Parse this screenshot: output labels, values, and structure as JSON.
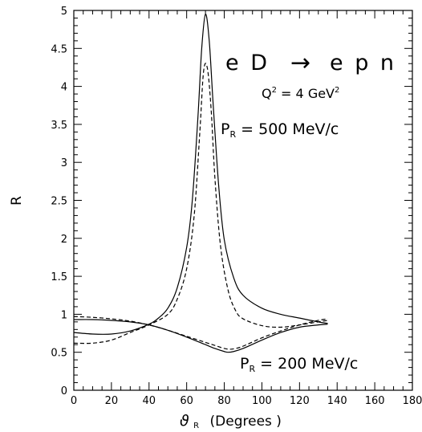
{
  "chart_data": {
    "type": "line",
    "xlabel_symbol": "ϑ",
    "xlabel_sub": "R",
    "xlabel_text": "(Degrees )",
    "ylabel": "R",
    "xlim": [
      0,
      180
    ],
    "ylim": [
      0,
      5
    ],
    "xticks": [
      0,
      20,
      40,
      60,
      80,
      100,
      120,
      140,
      160,
      180
    ],
    "yticks": [
      0,
      0.5,
      1,
      1.5,
      2,
      2.5,
      3,
      3.5,
      4,
      4.5,
      5
    ],
    "ytick_labels": [
      "0",
      "0.5",
      "1",
      "1.5",
      "2",
      "2.5",
      "3",
      "3.5",
      "4",
      "4.5",
      "5"
    ],
    "grid": false,
    "annotations": {
      "reaction": "eD → epn",
      "reaction_left": "e D",
      "reaction_arrow": "→",
      "reaction_right": "e p n",
      "q2_pre": "Q",
      "q2_sup": "2",
      "q2_mid": " = 4 GeV",
      "q2_unit_sup": "2",
      "p_upper_main": "P",
      "p_upper_sub": "R",
      "p_upper_rest": " = 500 MeV/c",
      "p_lower_main": "P",
      "p_lower_sub": "R",
      "p_lower_rest": " = 200 MeV/c"
    },
    "series": [
      {
        "style": "solid",
        "x": [
          0,
          10,
          20,
          30,
          40,
          45,
          50,
          55,
          60,
          63,
          66,
          68,
          70,
          72,
          74,
          77,
          80,
          85,
          90,
          100,
          110,
          120,
          130,
          135
        ],
        "y": [
          0.76,
          0.74,
          0.74,
          0.78,
          0.87,
          0.95,
          1.08,
          1.35,
          1.88,
          2.5,
          3.6,
          4.5,
          4.95,
          4.6,
          3.8,
          2.7,
          1.98,
          1.48,
          1.25,
          1.08,
          1.0,
          0.95,
          0.9,
          0.88
        ]
      },
      {
        "style": "dashed",
        "x": [
          0,
          10,
          20,
          30,
          40,
          50,
          55,
          60,
          64,
          67,
          69,
          71,
          73,
          75,
          78,
          82,
          86,
          90,
          100,
          110,
          120,
          130,
          135
        ],
        "y": [
          0.62,
          0.62,
          0.66,
          0.76,
          0.86,
          1.0,
          1.2,
          1.6,
          2.3,
          3.4,
          4.2,
          4.24,
          3.7,
          2.8,
          1.9,
          1.32,
          1.05,
          0.94,
          0.85,
          0.83,
          0.86,
          0.9,
          0.92
        ]
      },
      {
        "style": "solid",
        "x": [
          0,
          10,
          20,
          30,
          40,
          50,
          60,
          70,
          75,
          80,
          82,
          85,
          90,
          100,
          110,
          120,
          130,
          135
        ],
        "y": [
          0.93,
          0.93,
          0.92,
          0.9,
          0.86,
          0.79,
          0.7,
          0.6,
          0.55,
          0.51,
          0.5,
          0.51,
          0.55,
          0.66,
          0.76,
          0.83,
          0.86,
          0.87
        ]
      },
      {
        "style": "dashed",
        "x": [
          0,
          10,
          20,
          30,
          40,
          50,
          60,
          70,
          75,
          80,
          83,
          86,
          90,
          100,
          110,
          120,
          130,
          135
        ],
        "y": [
          0.97,
          0.96,
          0.94,
          0.91,
          0.86,
          0.79,
          0.71,
          0.63,
          0.59,
          0.55,
          0.54,
          0.55,
          0.58,
          0.69,
          0.78,
          0.86,
          0.92,
          0.94
        ]
      }
    ]
  }
}
